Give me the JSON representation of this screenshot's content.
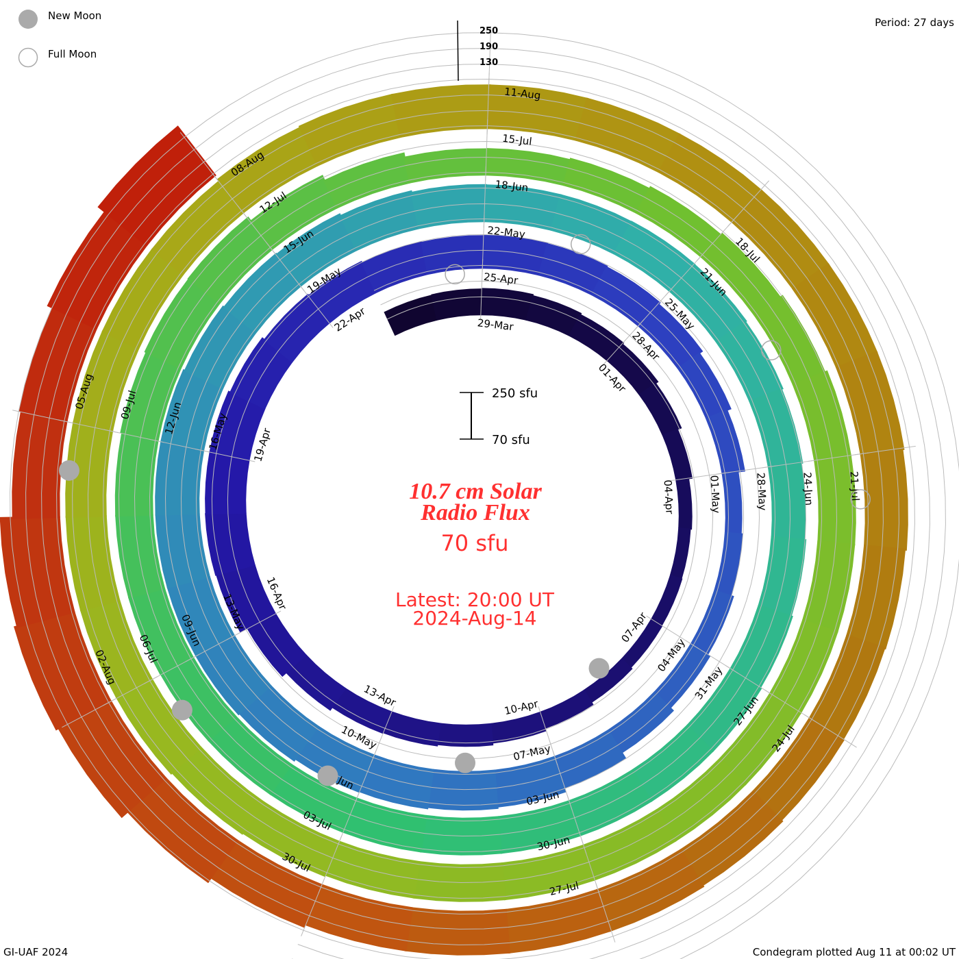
{
  "legend": {
    "new_moon": "New Moon",
    "full_moon": "Full Moon",
    "moon_color": "#aaaaaa"
  },
  "period": "Period: 27 days",
  "footer": {
    "left": "GI-UAF 2024",
    "right": "Condegram plotted Aug 11 at 00:02 UT"
  },
  "center": {
    "title_line1": "10.7 cm Solar",
    "title_line2": "Radio Flux",
    "current_value": "70 sfu",
    "latest_line1": "Latest: 20:00 UT",
    "latest_line2": "2024-Aug-14",
    "scale_top": "250 sfu",
    "scale_bottom": "70 sfu",
    "text_color": "#ff3030"
  },
  "chart_data": {
    "type": "bar",
    "subtype": "condegram-spiral",
    "title": "10.7 cm Solar Radio Flux",
    "units": "sfu",
    "period_days": 27,
    "start_date": "2024-03-27",
    "reference_date": "2024-03-29",
    "scale_ticks": [
      "250",
      "190",
      "130"
    ],
    "grid_levels": [
      130,
      190,
      250
    ],
    "baseline_sfu": 60,
    "values": [
      160,
      162,
      164,
      160,
      155,
      150,
      140,
      125,
      112,
      108,
      110,
      112,
      118,
      128,
      138,
      145,
      150,
      152,
      165,
      185,
      215,
      218,
      217,
      217,
      210,
      200,
      195,
      190,
      188,
      190,
      188,
      185,
      178,
      165,
      150,
      125,
      130,
      140,
      150,
      165,
      190,
      205,
      210,
      215,
      217,
      225,
      230,
      230,
      230,
      230,
      230,
      225,
      220,
      217,
      210,
      205,
      204,
      204,
      205,
      204,
      200,
      195,
      190,
      195,
      200,
      204,
      204,
      204,
      204,
      204,
      204,
      204,
      204,
      204,
      205,
      205,
      205,
      210,
      215,
      217,
      200,
      180,
      164,
      165,
      170,
      178,
      185,
      195,
      204,
      204,
      204,
      204,
      204,
      204,
      204,
      204,
      204,
      204,
      208,
      212,
      217,
      217,
      217,
      217,
      217,
      217,
      217,
      225,
      230,
      230,
      230,
      230,
      230,
      230,
      230,
      230,
      225,
      220,
      217,
      220,
      225,
      230,
      230,
      230,
      230,
      240,
      260,
      290,
      300,
      290,
      243,
      250,
      270,
      300
    ],
    "date_labels": [
      "29-Mar",
      "01-Apr",
      "04-Apr",
      "07-Apr",
      "10-Apr",
      "13-Apr",
      "16-Apr",
      "19-Apr",
      "22-Apr",
      "25-Apr",
      "28-Apr",
      "01-May",
      "04-May",
      "07-May",
      "10-May",
      "13-May",
      "16-May",
      "19-May",
      "22-May",
      "25-May",
      "28-May",
      "31-May",
      "03-Jun",
      "06-Jun",
      "09-Jun",
      "12-Jun",
      "15-Jun",
      "18-Jun",
      "21-Jun",
      "24-Jun",
      "27-Jun",
      "30-Jun",
      "03-Jul",
      "06-Jul",
      "09-Jul",
      "12-Jul",
      "15-Jul",
      "18-Jul",
      "21-Jul",
      "24-Jul",
      "27-Jul",
      "30-Jul",
      "02-Aug",
      "05-Aug",
      "08-Aug",
      "11-Aug"
    ],
    "new_moons": [
      "2024-04-08",
      "2024-05-08",
      "2024-06-06",
      "2024-07-05",
      "2024-08-04"
    ],
    "full_moons": [
      "2024-04-24",
      "2024-05-23",
      "2024-06-22",
      "2024-07-21"
    ],
    "colormap": [
      {
        "day": 0,
        "color": "#100530"
      },
      {
        "day": 22,
        "color": "#2418a8"
      },
      {
        "day": 32,
        "color": "#2d40c0"
      },
      {
        "day": 43,
        "color": "#3078c0"
      },
      {
        "day": 58,
        "color": "#30b0a8"
      },
      {
        "day": 70,
        "color": "#30c070"
      },
      {
        "day": 85,
        "color": "#70c030"
      },
      {
        "day": 100,
        "color": "#98b820"
      },
      {
        "day": 106,
        "color": "#a8a818"
      },
      {
        "day": 112,
        "color": "#b09012"
      },
      {
        "day": 118,
        "color": "#b07810"
      },
      {
        "day": 124,
        "color": "#c05510"
      },
      {
        "day": 130,
        "color": "#c03010"
      },
      {
        "day": 134,
        "color": "#c01a08"
      }
    ]
  }
}
